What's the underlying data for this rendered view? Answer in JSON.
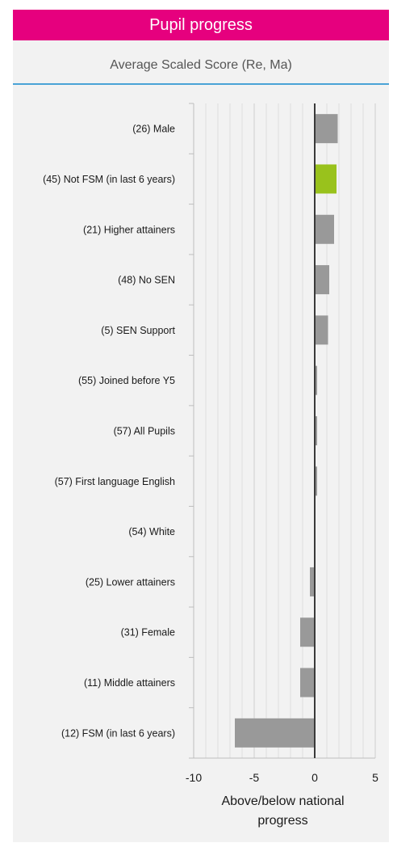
{
  "header": {
    "title": "Pupil progress"
  },
  "chart_data": {
    "type": "bar",
    "orientation": "horizontal",
    "title": "Average Scaled Score (Re, Ma)",
    "xlabel": "Above/below national progress",
    "xlim": [
      -10,
      5
    ],
    "xticks": [
      "-10",
      "-5",
      "0",
      "5"
    ],
    "grid": true,
    "bar_color": "#999999",
    "highlight_color": "#99c21c",
    "categories": [
      "(26) Male",
      "(45) Not FSM (in last 6 years)",
      "(21) Higher attainers",
      "(48) No SEN",
      "(5) SEN Support",
      "(55) Joined before Y5",
      "(57) All Pupils",
      "(57) First language English",
      "(54) White",
      "(25) Lower attainers",
      "(31) Female",
      "(11) Middle attainers",
      "(12) FSM (in last 6 years)"
    ],
    "values": [
      1.9,
      1.8,
      1.6,
      1.2,
      1.1,
      0.2,
      0.2,
      0.2,
      0.0,
      -0.4,
      -1.2,
      -1.2,
      -6.6
    ],
    "highlighted": [
      false,
      true,
      false,
      false,
      false,
      false,
      false,
      false,
      false,
      false,
      false,
      false,
      false
    ]
  }
}
